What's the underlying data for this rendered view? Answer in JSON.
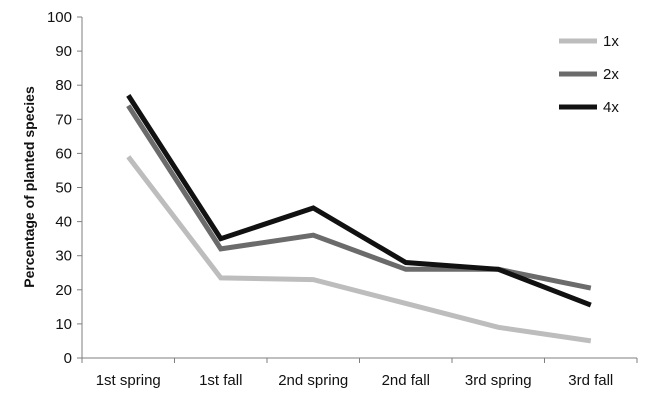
{
  "chart_data": {
    "type": "line",
    "title": "",
    "xlabel": "",
    "ylabel": "Percentage of planted species",
    "categories": [
      "1st spring",
      "1st fall",
      "2nd spring",
      "2nd fall",
      "3rd spring",
      "3rd fall"
    ],
    "ylim": [
      0,
      100
    ],
    "yticks": [
      0,
      10,
      20,
      30,
      40,
      50,
      60,
      70,
      80,
      90,
      100
    ],
    "grid": false,
    "legend_position": "top-right",
    "series": [
      {
        "name": "1x",
        "color": "#bdbdbd",
        "values": [
          59,
          23.5,
          23,
          16,
          9,
          5
        ]
      },
      {
        "name": "2x",
        "color": "#6b6b6b",
        "values": [
          74,
          32,
          36,
          26,
          26,
          20.5
        ]
      },
      {
        "name": "4x",
        "color": "#111111",
        "values": [
          77,
          35,
          44,
          28,
          26,
          15.5
        ]
      }
    ]
  }
}
